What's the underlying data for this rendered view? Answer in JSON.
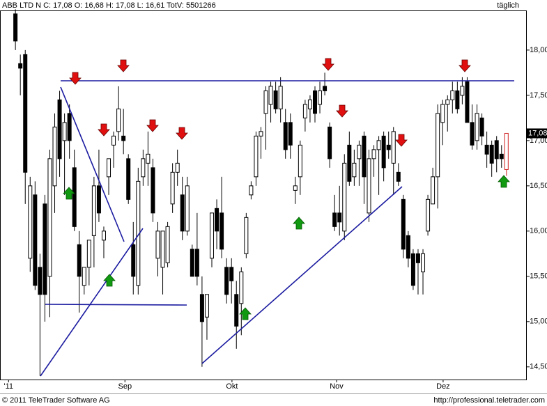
{
  "chart_data": {
    "type": "candlestick",
    "title": "ABB LTD N C: 17,08 O: 16,68 H: 17,08 L: 16,61 TotV: 5501266",
    "period": "täglich",
    "copyright": "© 2011 TeleTrader Software AG",
    "url": "http://professional.teletrader.com",
    "ylim": [
      14.36,
      18.43
    ],
    "yticks": [
      {
        "value": 14.5,
        "label": "14,50"
      },
      {
        "value": 15,
        "label": "15,00"
      },
      {
        "value": 15.5,
        "label": "15,50"
      },
      {
        "value": 16,
        "label": "16,00"
      },
      {
        "value": 16.5,
        "label": "16,50"
      },
      {
        "value": 17,
        "label": "17,00"
      },
      {
        "value": 17.5,
        "label": "17,50"
      },
      {
        "value": 18,
        "label": "18,00"
      }
    ],
    "xlim": [
      -3,
      104
    ],
    "xticks": [
      {
        "value": -1.4,
        "label": "'11"
      },
      {
        "value": 22.3,
        "label": "Sep"
      },
      {
        "value": 44.1,
        "label": "Okt"
      },
      {
        "value": 65.4,
        "label": "Nov"
      },
      {
        "value": 87.1,
        "label": "Dez"
      }
    ],
    "last_price": {
      "value": 17.08,
      "label": "17,08"
    },
    "up_color": "#ffffff",
    "down_color": "#000000",
    "last_color": "#d02020",
    "candles": [
      [
        18.4,
        18.45,
        18.0,
        18.1
      ],
      [
        17.85,
        17.95,
        17.5,
        17.8
      ],
      [
        17.95,
        18.0,
        16.3,
        16.65
      ],
      [
        15.7,
        16.6,
        15.55,
        16.5
      ],
      [
        16.4,
        16.55,
        15.35,
        15.4
      ],
      [
        15.6,
        15.75,
        14.4,
        15.3
      ],
      [
        16.3,
        16.4,
        15.0,
        15.3
      ],
      [
        15.5,
        16.9,
        15.05,
        16.8
      ],
      [
        16.5,
        17.3,
        16.2,
        17.15
      ],
      [
        17.45,
        17.55,
        16.6,
        16.8
      ],
      [
        17.0,
        17.3,
        16.4,
        17.2
      ],
      [
        17.3,
        17.4,
        16.8,
        17.0
      ],
      [
        16.7,
        16.9,
        16.0,
        16.05
      ],
      [
        15.85,
        16.0,
        15.1,
        15.5
      ],
      [
        15.4,
        15.6,
        15.3,
        15.6
      ],
      [
        15.6,
        15.9,
        15.4,
        15.9
      ],
      [
        15.95,
        16.6,
        15.6,
        16.5
      ],
      [
        16.5,
        16.9,
        16.1,
        16.2
      ],
      [
        15.9,
        16.05,
        15.7,
        16.0
      ],
      [
        16.6,
        16.8,
        16.4,
        16.8
      ],
      [
        16.95,
        17.1,
        16.7,
        17.05
      ],
      [
        17.1,
        17.6,
        17.0,
        17.35
      ],
      [
        17.05,
        17.35,
        16.85,
        17.0
      ],
      [
        16.8,
        16.85,
        16.3,
        16.35
      ],
      [
        15.85,
        16.1,
        15.3,
        15.5
      ],
      [
        15.4,
        16.7,
        15.3,
        16.55
      ],
      [
        16.6,
        16.9,
        16.5,
        16.8
      ],
      [
        16.75,
        17.1,
        16.5,
        16.85
      ],
      [
        16.7,
        16.8,
        16.1,
        16.2
      ],
      [
        15.7,
        16.1,
        15.5,
        16.0
      ],
      [
        15.6,
        16.0,
        15.3,
        16.0
      ],
      [
        15.65,
        16.1,
        15.6,
        16.05
      ],
      [
        16.3,
        16.75,
        16.2,
        16.65
      ],
      [
        16.65,
        16.9,
        16.5,
        16.75
      ],
      [
        16.4,
        16.6,
        15.9,
        16.0
      ],
      [
        16.0,
        16.6,
        15.95,
        16.5
      ],
      [
        15.8,
        15.85,
        15.5,
        15.5
      ],
      [
        15.8,
        16.2,
        15.4,
        15.5
      ],
      [
        15.3,
        15.5,
        14.5,
        15.0
      ],
      [
        15.05,
        15.3,
        14.8,
        15.3
      ],
      [
        15.7,
        16.2,
        15.6,
        16.2
      ],
      [
        16.25,
        16.35,
        15.8,
        16.0
      ],
      [
        16.2,
        16.6,
        15.7,
        15.8
      ],
      [
        15.6,
        15.7,
        15.2,
        15.3
      ],
      [
        15.6,
        15.7,
        15.2,
        15.45
      ],
      [
        15.3,
        15.45,
        14.7,
        14.95
      ],
      [
        15.2,
        15.6,
        14.85,
        15.55
      ],
      [
        15.75,
        16.2,
        15.7,
        16.15
      ],
      [
        16.4,
        16.55,
        16.35,
        16.5
      ],
      [
        16.6,
        17.1,
        16.5,
        17.05
      ],
      [
        17.05,
        17.15,
        16.8,
        17.1
      ],
      [
        17.3,
        17.6,
        16.9,
        17.55
      ],
      [
        17.4,
        17.65,
        17.2,
        17.6
      ],
      [
        17.55,
        17.65,
        17.3,
        17.35
      ],
      [
        17.35,
        17.7,
        17.2,
        17.6
      ],
      [
        17.2,
        17.35,
        16.8,
        16.9
      ],
      [
        17.2,
        17.3,
        16.8,
        16.95
      ],
      [
        16.45,
        16.6,
        16.3,
        16.5
      ],
      [
        16.6,
        17.0,
        16.4,
        16.95
      ],
      [
        17.25,
        17.45,
        17.1,
        17.4
      ],
      [
        17.35,
        17.5,
        17.2,
        17.45
      ],
      [
        17.55,
        17.6,
        17.2,
        17.3
      ],
      [
        17.4,
        17.65,
        17.3,
        17.55
      ],
      [
        17.6,
        17.75,
        17.5,
        17.55
      ],
      [
        17.15,
        17.2,
        16.7,
        16.8
      ],
      [
        16.2,
        16.4,
        16.0,
        16.05
      ],
      [
        16.2,
        16.5,
        15.95,
        16.1
      ],
      [
        16.0,
        16.85,
        15.9,
        16.75
      ],
      [
        16.95,
        17.1,
        16.5,
        16.55
      ],
      [
        16.6,
        16.9,
        16.5,
        16.75
      ],
      [
        16.8,
        17.0,
        16.5,
        16.95
      ],
      [
        17.05,
        17.1,
        16.3,
        16.6
      ],
      [
        16.2,
        16.9,
        16.1,
        16.8
      ],
      [
        16.8,
        16.95,
        16.6,
        16.9
      ],
      [
        16.9,
        17.05,
        16.4,
        17.0
      ],
      [
        17.05,
        17.1,
        16.55,
        16.7
      ],
      [
        16.95,
        17.1,
        16.8,
        16.9
      ],
      [
        16.75,
        17.15,
        16.4,
        17.1
      ],
      [
        16.65,
        16.75,
        16.5,
        16.55
      ],
      [
        16.35,
        16.4,
        15.7,
        15.8
      ],
      [
        15.95,
        16.0,
        15.6,
        15.7
      ],
      [
        15.75,
        15.8,
        15.35,
        15.4
      ],
      [
        15.75,
        15.8,
        15.3,
        15.65
      ],
      [
        15.55,
        15.8,
        15.3,
        15.75
      ],
      [
        16.0,
        16.4,
        15.95,
        16.35
      ],
      [
        16.3,
        16.7,
        16.3,
        16.6
      ],
      [
        16.6,
        17.4,
        16.25,
        17.3
      ],
      [
        17.2,
        17.45,
        16.95,
        17.4
      ],
      [
        17.4,
        17.5,
        17.1,
        17.45
      ],
      [
        17.45,
        17.65,
        17.3,
        17.55
      ],
      [
        17.55,
        17.65,
        17.3,
        17.35
      ],
      [
        17.5,
        17.7,
        17.4,
        17.6
      ],
      [
        17.65,
        17.7,
        17.2,
        17.2
      ],
      [
        17.2,
        17.4,
        16.9,
        16.95
      ],
      [
        17.0,
        17.4,
        16.9,
        17.3
      ],
      [
        17.25,
        17.3,
        16.95,
        17.05
      ],
      [
        16.95,
        17.1,
        16.7,
        16.85
      ],
      [
        16.95,
        17.0,
        16.6,
        16.75
      ],
      [
        17.0,
        17.05,
        16.65,
        16.8
      ],
      [
        16.85,
        16.95,
        16.7,
        16.8
      ],
      [
        16.68,
        17.08,
        16.61,
        17.08
      ]
    ]
  }
}
